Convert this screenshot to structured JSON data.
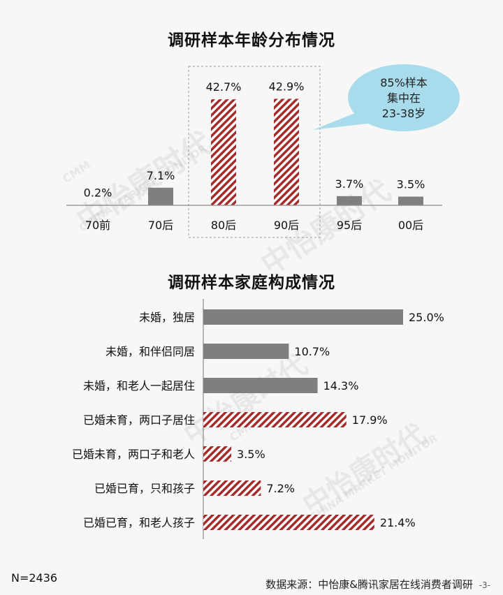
{
  "chart_data": [
    {
      "type": "bar",
      "title": "调研样本年龄分布情况",
      "categories": [
        "70前",
        "70后",
        "80后",
        "90后",
        "95后",
        "00后"
      ],
      "values": [
        0.2,
        7.1,
        42.7,
        42.9,
        3.7,
        3.5
      ],
      "value_labels": [
        "0.2%",
        "7.1%",
        "42.7%",
        "42.9%",
        "3.7%",
        "3.5%"
      ],
      "highlight_categories": [
        "80后",
        "90后"
      ],
      "annotation": [
        "85%样本",
        "集中在",
        "23-38岁"
      ],
      "ylim": [
        0,
        45
      ]
    },
    {
      "type": "bar",
      "orientation": "horizontal",
      "title": "调研样本家庭构成情况",
      "categories": [
        "未婚，独居",
        "未婚，和伴侣同居",
        "未婚，和老人一起居住",
        "已婚未育，两口子居住",
        "已婚未育，两口子和老人",
        "已婚已育，只和孩子",
        "已婚已育，和老人孩子"
      ],
      "values": [
        25.0,
        10.7,
        14.3,
        17.9,
        3.5,
        7.2,
        21.4
      ],
      "value_labels": [
        "25.0%",
        "10.7%",
        "14.3%",
        "17.9%",
        "3.5%",
        "7.2%",
        "21.4%"
      ],
      "married_from_index": 3,
      "xlim": [
        0,
        27
      ]
    }
  ],
  "footer": {
    "sample_size": "N=2436",
    "source": "数据来源：中怡康&腾讯家居在线消费者调研",
    "page_number": "-3-"
  },
  "watermark": {
    "brand": "中怡康时代",
    "brand_en": "CHINA MARKET MONITOR",
    "logo": "CMM"
  },
  "colors": {
    "gray_bar": "#7f7f7f",
    "stripe": "#a52a2a",
    "callout": "#a8dcec",
    "axis": "#8c8c8c"
  }
}
